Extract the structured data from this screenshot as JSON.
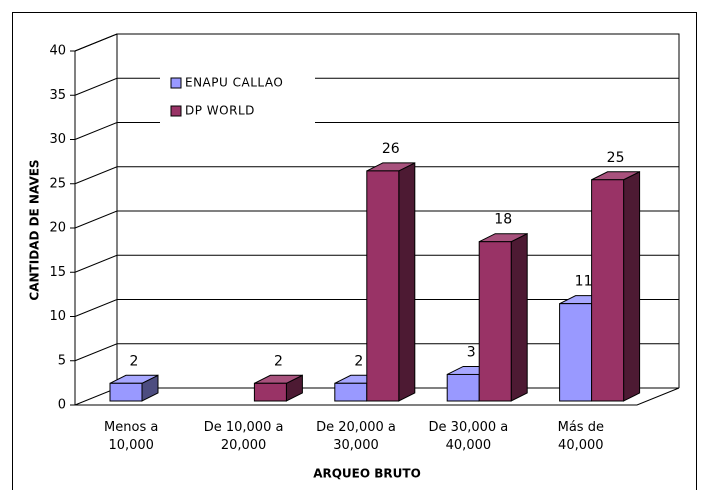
{
  "chart_data": {
    "type": "bar3d",
    "ylabel": "CANTIDAD DE NAVES",
    "xlabel": "ARQUEO BRUTO",
    "categories": [
      "Menos a\n10,000",
      "De 10,000 a\n20,000",
      "De 20,000 a\n30,000",
      "De 30,000 a\n40,000",
      "Más de\n40,000"
    ],
    "series": [
      {
        "name": "ENAPU CALLAO",
        "color": "#9999ff",
        "values": [
          2,
          null,
          2,
          3,
          11
        ]
      },
      {
        "name": "DP WORLD",
        "color": "#993366",
        "values": [
          null,
          2,
          26,
          18,
          25
        ]
      }
    ],
    "ylim": [
      0,
      40
    ],
    "yticks": [
      0,
      5,
      10,
      15,
      20,
      25,
      30,
      35,
      40
    ],
    "grid": true,
    "legend": "top-left"
  }
}
